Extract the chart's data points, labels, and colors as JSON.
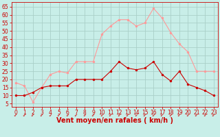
{
  "hours": [
    0,
    1,
    2,
    3,
    4,
    5,
    6,
    7,
    8,
    9,
    10,
    11,
    12,
    13,
    14,
    15,
    16,
    17,
    18,
    19,
    20,
    21,
    22,
    23
  ],
  "vent_moyen": [
    10,
    10,
    12,
    15,
    16,
    16,
    16,
    20,
    20,
    20,
    20,
    25,
    31,
    27,
    26,
    27,
    31,
    23,
    19,
    25,
    17,
    15,
    13,
    10
  ],
  "rafales": [
    18,
    16,
    6,
    15,
    23,
    25,
    24,
    31,
    31,
    31,
    48,
    53,
    57,
    57,
    53,
    55,
    64,
    58,
    49,
    42,
    37,
    25,
    25,
    25
  ],
  "bg_color": "#c8eee8",
  "grid_color": "#aacfc8",
  "line_moyen_color": "#cc0000",
  "line_rafales_color": "#ff9999",
  "marker_size": 2.5,
  "xlabel": "Vent moyen/en rafales ( km/h )",
  "xlabel_color": "#cc0000",
  "xlabel_fontsize": 7,
  "ylabel_ticks": [
    5,
    10,
    15,
    20,
    25,
    30,
    35,
    40,
    45,
    50,
    55,
    60,
    65
  ],
  "ylim": [
    3,
    68
  ],
  "xlim": [
    -0.5,
    23.5
  ],
  "tick_color": "#cc0000",
  "tick_fontsize": 5.5,
  "figsize": [
    3.2,
    2.0
  ],
  "dpi": 100
}
